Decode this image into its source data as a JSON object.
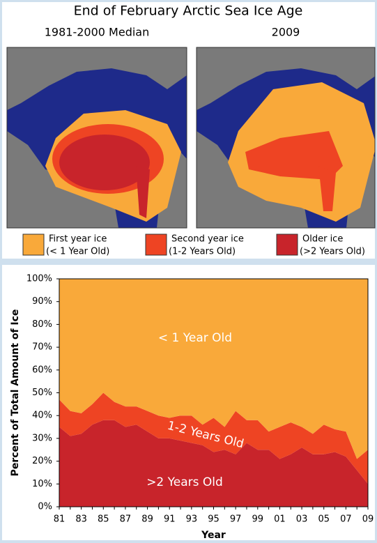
{
  "maps": {
    "title": "End of February Arctic Sea Ice Age",
    "panels": [
      {
        "label": "1981-2000 Median"
      },
      {
        "label": "2009"
      }
    ],
    "legend": [
      {
        "label": "First year ice",
        "sublabel": "(< 1 Year Old)",
        "color": "#f9a93a"
      },
      {
        "label": "Second year ice",
        "sublabel": "(1-2 Years Old)",
        "color": "#ee4423"
      },
      {
        "label": "Older ice",
        "sublabel": "(>2 Years Old)",
        "color": "#c8242b"
      }
    ]
  },
  "chart_data": {
    "type": "stacked-area",
    "x_label": "Year",
    "y_label": "Percent of Total Amount of Ice",
    "categories": [
      "81",
      null,
      "83",
      null,
      "85",
      null,
      "87",
      null,
      "89",
      null,
      "91",
      null,
      "93",
      null,
      "95",
      null,
      "97",
      null,
      "99",
      null,
      "01",
      null,
      "03",
      null,
      "05",
      null,
      "07",
      null,
      "09"
    ],
    "series": [
      {
        "name": ">2 Years Old",
        "color": "#c8242b",
        "values": [
          35,
          31,
          32,
          36,
          38,
          38,
          35,
          36,
          33,
          30,
          30,
          29,
          28,
          27,
          24,
          25,
          23,
          28,
          25,
          25,
          21,
          23,
          26,
          23,
          23,
          24,
          22,
          16,
          10
        ]
      },
      {
        "name": "1-2 Years Old",
        "color": "#ee4423",
        "values": [
          12,
          11,
          9,
          9,
          12,
          8,
          9,
          8,
          9,
          10,
          9,
          11,
          12,
          9,
          15,
          10,
          19,
          10,
          13,
          8,
          14,
          14,
          9,
          9,
          13,
          10,
          11,
          5,
          15
        ]
      },
      {
        "name": "< 1 Year Old",
        "color": "#f9a93a",
        "values": [
          53,
          58,
          59,
          55,
          50,
          54,
          56,
          56,
          58,
          60,
          61,
          60,
          60,
          64,
          61,
          65,
          58,
          62,
          62,
          67,
          65,
          63,
          65,
          68,
          64,
          66,
          67,
          79,
          75
        ]
      }
    ],
    "ylim": [
      0,
      100
    ],
    "yticks": [
      {
        "value": 0,
        "label": "0%"
      },
      {
        "value": 10,
        "label": "10%"
      },
      {
        "value": 20,
        "label": "20%"
      },
      {
        "value": 30,
        "label": "30%"
      },
      {
        "value": 40,
        "label": "40%"
      },
      {
        "value": 50,
        "label": "50%"
      },
      {
        "value": 60,
        "label": "60%"
      },
      {
        "value": 70,
        "label": "70%"
      },
      {
        "value": 80,
        "label": "80%"
      },
      {
        "value": 90,
        "label": "90%"
      },
      {
        "value": 100,
        "label": "100%"
      }
    ]
  }
}
